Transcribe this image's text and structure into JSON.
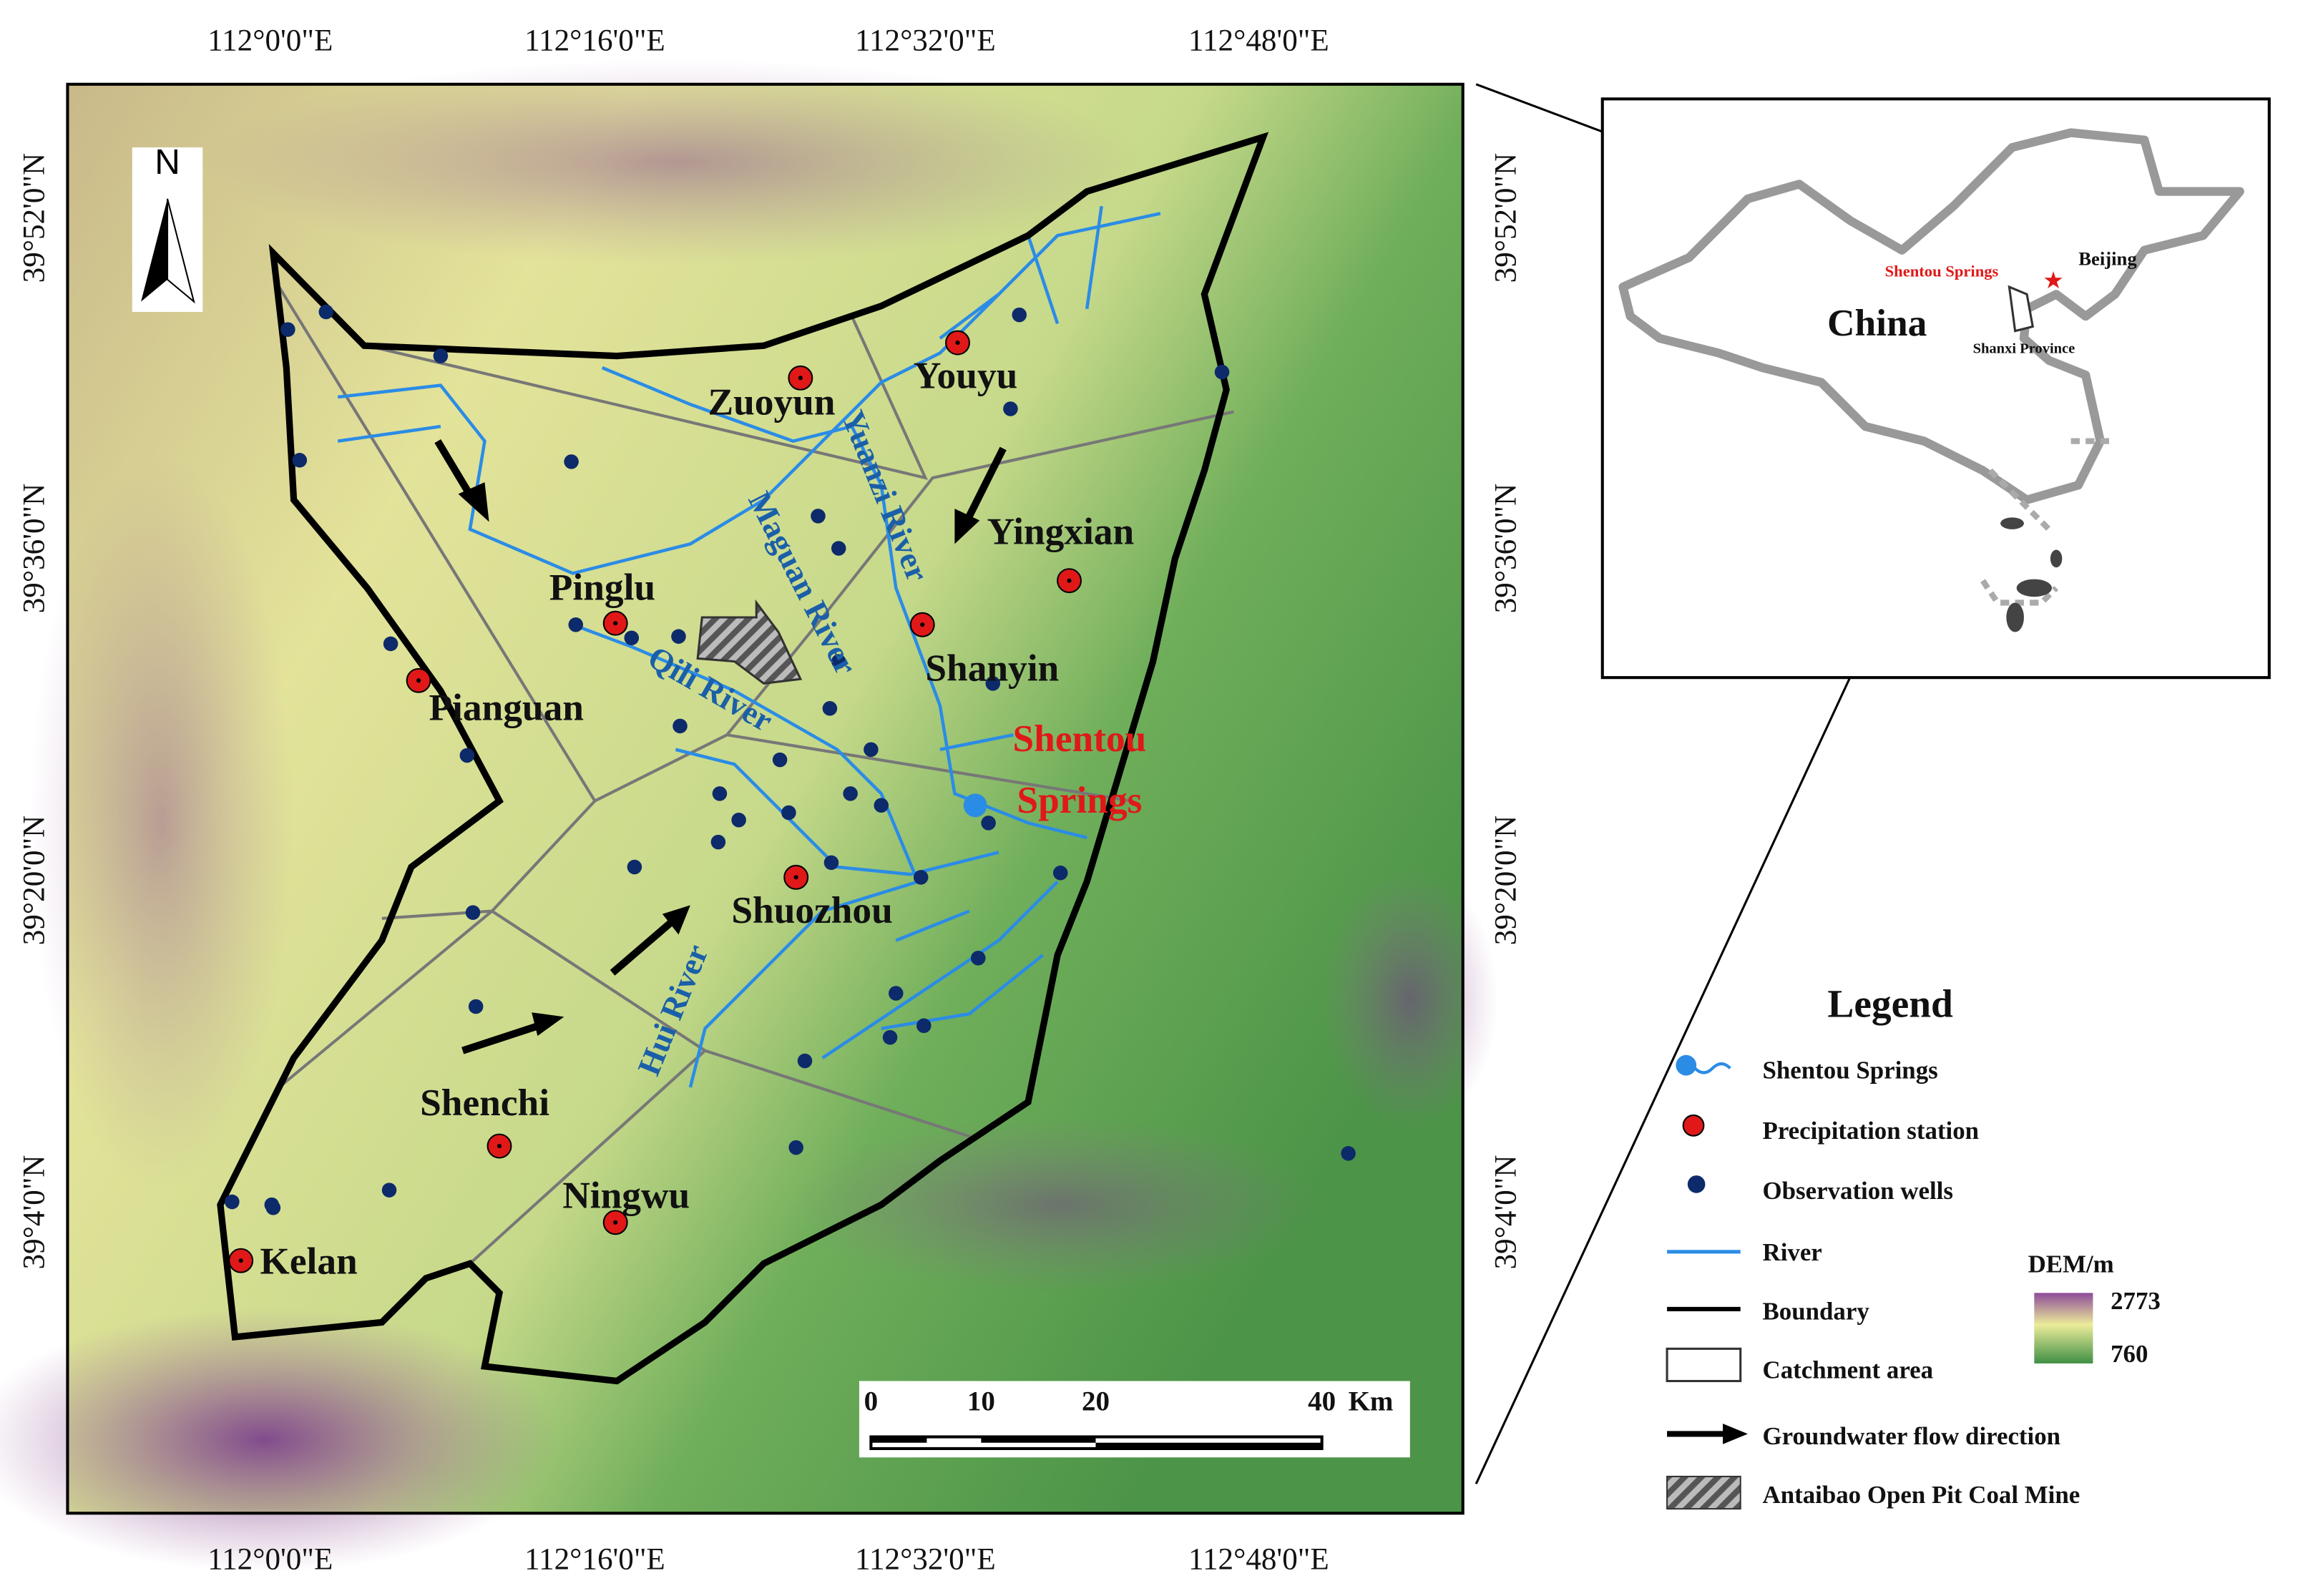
{
  "axes": {
    "top": [
      "112°0'0\"E",
      "112°16'0\"E",
      "112°32'0\"E",
      "112°48'0\"E"
    ],
    "bottom": [
      "112°0'0\"E",
      "112°16'0\"E",
      "112°32'0\"E",
      "112°48'0\"E"
    ],
    "left": [
      "39°52'0\"N",
      "39°36'0\"N",
      "39°20'0\"N",
      "39°4'0\"N"
    ],
    "right": [
      "39°52'0\"N",
      "39°36'0\"N",
      "39°20'0\"N",
      "39°4'0\"N"
    ]
  },
  "north_arrow": "N",
  "places": [
    "Zuoyun",
    "Youyu",
    "Yingxian",
    "Pinglu",
    "Shanyin",
    "Pianguan",
    "Shuozhou",
    "Shenchi",
    "Ningwu",
    "Kelan"
  ],
  "rivers": [
    "Yuanzi River",
    "Maguan River",
    "Qili River",
    "Hui River"
  ],
  "springs_label": [
    "Shentou",
    "Springs"
  ],
  "scale_bar": {
    "ticks": [
      0,
      10,
      20,
      40
    ],
    "unit": "Km"
  },
  "inset": {
    "country": "China",
    "capital": "Beijing",
    "province": "Shanxi Province",
    "springs": "Shentou Springs"
  },
  "legend": {
    "title": "Legend",
    "items": [
      "Shentou Springs",
      "Precipitation station",
      "Observation wells",
      "River",
      "Boundary",
      "Catchment area",
      "Groundwater flow direction",
      "Antaibao Open Pit Coal Mine"
    ],
    "dem_title": "DEM/m",
    "dem_max": 2773,
    "dem_min": 760
  }
}
